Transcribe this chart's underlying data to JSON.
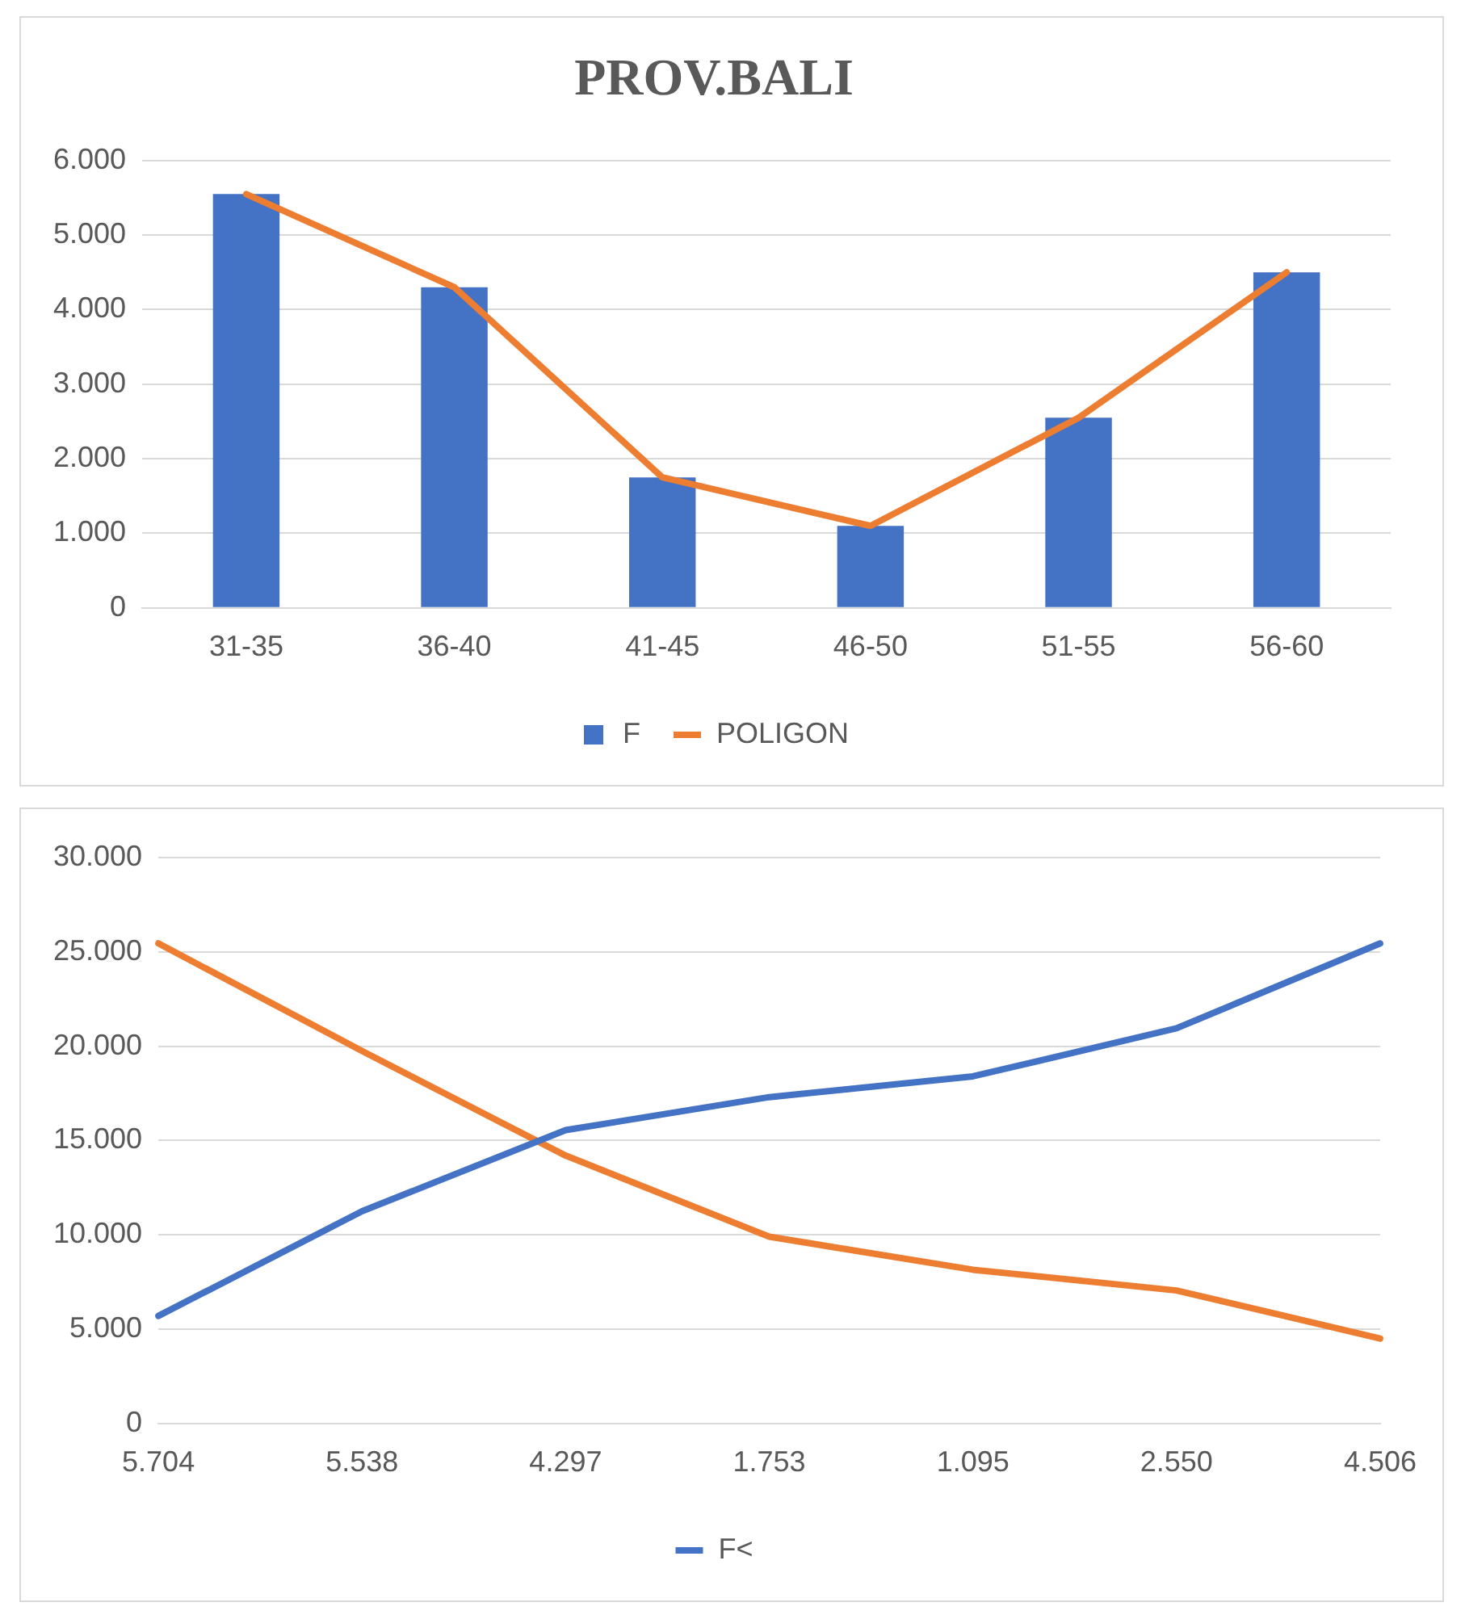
{
  "chart_data": [
    {
      "type": "bar",
      "title": "PROV.BALI",
      "categories": [
        "31-35",
        "36-40",
        "41-45",
        "46-50",
        "51-55",
        "56-60"
      ],
      "series": [
        {
          "name": "F",
          "type": "bar",
          "color": "#4472c4",
          "values": [
            5550,
            4300,
            1750,
            1100,
            2550,
            4500
          ]
        },
        {
          "name": "POLIGON",
          "type": "line",
          "color": "#ed7d31",
          "values": [
            5550,
            4300,
            1750,
            1100,
            2550,
            4500
          ]
        }
      ],
      "ylim": [
        0,
        6000
      ],
      "yticks": [
        {
          "value": 0,
          "label": "0"
        },
        {
          "value": 1000,
          "label": "1.000"
        },
        {
          "value": 2000,
          "label": "2.000"
        },
        {
          "value": 3000,
          "label": "3.000"
        },
        {
          "value": 4000,
          "label": "4.000"
        },
        {
          "value": 5000,
          "label": "5.000"
        },
        {
          "value": 6000,
          "label": "6.000"
        }
      ],
      "grid": "y",
      "legend": "bottom"
    },
    {
      "type": "line",
      "categories": [
        "5.704",
        "5.538",
        "4.297",
        "1.753",
        "1.095",
        "2.550",
        "4.506"
      ],
      "series": [
        {
          "name": "F<",
          "color": "#4472c4",
          "values": [
            5700,
            11250,
            15550,
            17300,
            18400,
            20950,
            25450
          ]
        },
        {
          "color": "#ed7d31",
          "values": [
            25450,
            19750,
            14200,
            9900,
            8150,
            7050,
            4500
          ]
        }
      ],
      "ylim": [
        0,
        30000
      ],
      "yticks": [
        {
          "value": 0,
          "label": "0"
        },
        {
          "value": 5000,
          "label": "5.000"
        },
        {
          "value": 10000,
          "label": "10.000"
        },
        {
          "value": 15000,
          "label": "15.000"
        },
        {
          "value": 20000,
          "label": "20.000"
        },
        {
          "value": 25000,
          "label": "25.000"
        },
        {
          "value": 30000,
          "label": "30.000"
        }
      ],
      "grid": "y",
      "legend": "bottom"
    }
  ]
}
